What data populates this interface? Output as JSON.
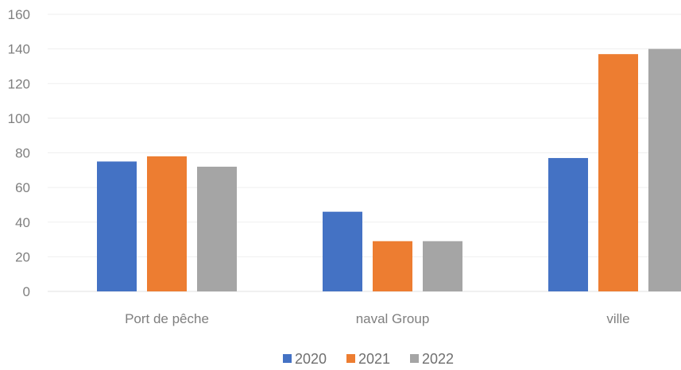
{
  "chart_data": {
    "type": "bar",
    "categories": [
      "Port de pêche",
      "naval Group",
      "ville"
    ],
    "series": [
      {
        "name": "2020",
        "values": [
          75,
          46,
          77
        ],
        "color": "#4472C4"
      },
      {
        "name": "2021",
        "values": [
          78,
          29,
          137
        ],
        "color": "#ED7D31"
      },
      {
        "name": "2022",
        "values": [
          72,
          29,
          140
        ],
        "color": "#A5A5A5"
      }
    ],
    "ylim": [
      0,
      160
    ],
    "yticks": [
      0,
      20,
      40,
      60,
      80,
      100,
      120,
      140,
      160
    ],
    "grid": true,
    "legend": "bottom"
  }
}
